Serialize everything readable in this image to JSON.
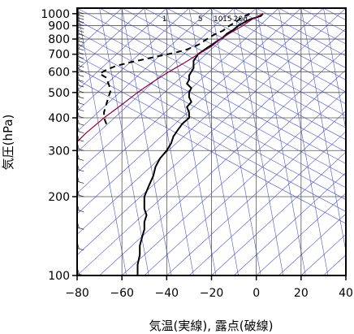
{
  "chart_data": {
    "type": "line",
    "xlabel": "気温(実線), 露点(破線)",
    "ylabel": "気圧(hPa)",
    "xlim": [
      -80,
      40
    ],
    "ylim": [
      1050,
      100
    ],
    "y_scale": "log",
    "x_ticks": [
      -80,
      -60,
      -40,
      -20,
      0,
      20,
      40
    ],
    "x_tick_labels": [
      "−80",
      "−60",
      "−40",
      "−20",
      "0",
      "20",
      "40"
    ],
    "y_ticks": [
      100,
      200,
      300,
      400,
      500,
      600,
      700,
      800,
      900,
      1000
    ],
    "y_tick_labels": [
      "100",
      "200",
      "300",
      "400",
      "500",
      "600",
      "700",
      "800",
      "900",
      "1000"
    ],
    "mixing_ratio_labels": [
      "1",
      "5",
      "10",
      "15",
      "20g"
    ],
    "grid": true,
    "series": [
      {
        "style": "solid",
        "color": "#000000",
        "points": [
          [
            3,
            1000
          ],
          [
            2,
            980
          ],
          [
            -3,
            950
          ],
          [
            -6,
            920
          ],
          [
            -8,
            900
          ],
          [
            -10,
            870
          ],
          [
            -13,
            840
          ],
          [
            -15,
            810
          ],
          [
            -17,
            790
          ],
          [
            -19,
            770
          ],
          [
            -22,
            740
          ],
          [
            -24,
            720
          ],
          [
            -26,
            700
          ],
          [
            -27,
            680
          ],
          [
            -28,
            660
          ],
          [
            -28,
            640
          ],
          [
            -28,
            620
          ],
          [
            -29,
            600
          ],
          [
            -30,
            580
          ],
          [
            -30,
            560
          ],
          [
            -31,
            540
          ],
          [
            -29,
            520
          ],
          [
            -30,
            500
          ],
          [
            -30,
            480
          ],
          [
            -29,
            460
          ],
          [
            -31,
            440
          ],
          [
            -30,
            420
          ],
          [
            -30,
            400
          ],
          [
            -33,
            380
          ],
          [
            -35,
            360
          ],
          [
            -37,
            340
          ],
          [
            -38,
            320
          ],
          [
            -40,
            300
          ],
          [
            -43,
            280
          ],
          [
            -45,
            260
          ],
          [
            -46,
            240
          ],
          [
            -48,
            220
          ],
          [
            -50,
            200
          ],
          [
            -50,
            180
          ],
          [
            -49,
            170
          ],
          [
            -50,
            160
          ],
          [
            -50,
            150
          ],
          [
            -51,
            140
          ],
          [
            -52,
            130
          ],
          [
            -52,
            120
          ],
          [
            -53,
            110
          ],
          [
            -53,
            100
          ]
        ]
      },
      {
        "style": "dashed",
        "color": "#000000",
        "points": [
          [
            -3,
            1000
          ],
          [
            -5,
            980
          ],
          [
            -7,
            960
          ],
          [
            -9,
            930
          ],
          [
            -12,
            900
          ],
          [
            -15,
            860
          ],
          [
            -19,
            830
          ],
          [
            -23,
            790
          ],
          [
            -26,
            760
          ],
          [
            -31,
            730
          ],
          [
            -36,
            710
          ],
          [
            -43,
            690
          ],
          [
            -50,
            670
          ],
          [
            -57,
            650
          ],
          [
            -63,
            630
          ],
          [
            -67,
            610
          ],
          [
            -70,
            590
          ],
          [
            -67,
            570
          ],
          [
            -66,
            540
          ],
          [
            -65,
            510
          ],
          [
            -66,
            480
          ],
          [
            -67,
            450
          ],
          [
            -68,
            420
          ],
          [
            -68,
            400
          ],
          [
            -67,
            380
          ],
          [
            -66,
            370
          ]
        ]
      },
      {
        "style": "solid",
        "color": "#8b0045",
        "points": [
          [
            3,
            1000
          ],
          [
            -2,
            950
          ],
          [
            -6,
            900
          ],
          [
            -11,
            850
          ],
          [
            -16,
            800
          ],
          [
            -20,
            750
          ],
          [
            -26,
            700
          ],
          [
            -32,
            650
          ],
          [
            -39,
            600
          ],
          [
            -46,
            550
          ],
          [
            -53,
            500
          ],
          [
            -60,
            450
          ],
          [
            -68,
            400
          ],
          [
            -76,
            350
          ],
          [
            -84,
            300
          ]
        ]
      }
    ]
  }
}
